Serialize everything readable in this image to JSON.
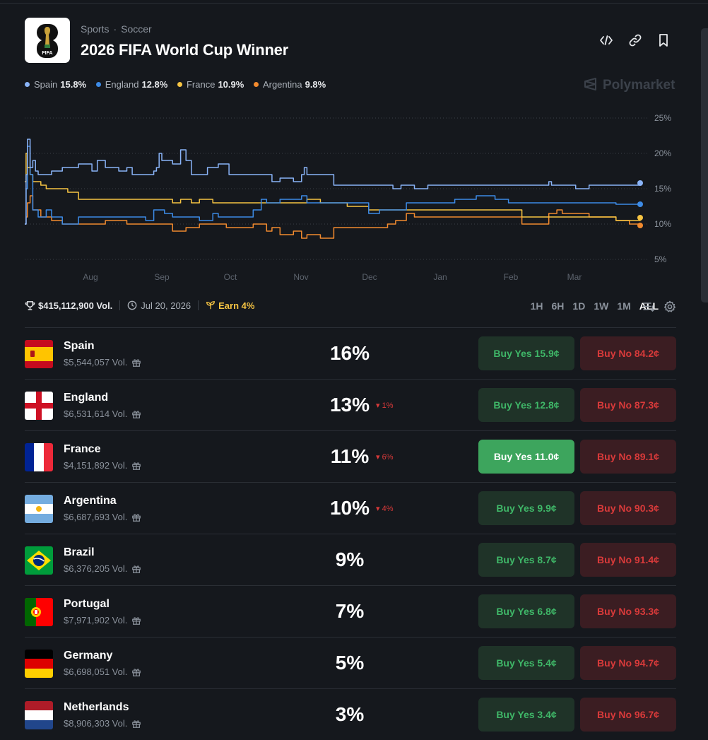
{
  "header": {
    "breadcrumb": [
      "Sports",
      "Soccer"
    ],
    "breadcrumb_sep": "·",
    "title": "2026 FIFA World Cup Winner",
    "logo_text": "FIFA",
    "icons": [
      "embed-icon",
      "link-icon",
      "bookmark-icon"
    ]
  },
  "legend": [
    {
      "name": "Spain",
      "value": "15.8%",
      "color": "#8ab4f8"
    },
    {
      "name": "England",
      "value": "12.8%",
      "color": "#3d8be6"
    },
    {
      "name": "France",
      "value": "10.9%",
      "color": "#f6c443"
    },
    {
      "name": "Argentina",
      "value": "9.8%",
      "color": "#f28a2e"
    }
  ],
  "brand": "Polymarket",
  "chart_data": {
    "type": "line",
    "x_ticks": [
      "Aug",
      "Sep",
      "Oct",
      "Nov",
      "Dec",
      "Jan",
      "Feb",
      "Mar"
    ],
    "y_ticks": [
      "25%",
      "20%",
      "15%",
      "10%",
      "5%"
    ],
    "ylim": [
      5,
      25
    ],
    "series": [
      {
        "name": "Spain",
        "color": "#8ab4f8",
        "points": [
          [
            0,
            10
          ],
          [
            0.5,
            17
          ],
          [
            1,
            22
          ],
          [
            2,
            18
          ],
          [
            3,
            19
          ],
          [
            4,
            17.5
          ],
          [
            5,
            17
          ],
          [
            10,
            17.5
          ],
          [
            14,
            18
          ],
          [
            20,
            18.5
          ],
          [
            25,
            17.5
          ],
          [
            27,
            19
          ],
          [
            30,
            18
          ],
          [
            35,
            17.5
          ],
          [
            38,
            18
          ],
          [
            40,
            17
          ],
          [
            45,
            17
          ],
          [
            48,
            17.5
          ],
          [
            49,
            18
          ],
          [
            50,
            20
          ],
          [
            51,
            19
          ],
          [
            55,
            18.5
          ],
          [
            58,
            20.5
          ],
          [
            60,
            19
          ],
          [
            62,
            17
          ],
          [
            68,
            18
          ],
          [
            72,
            18.5
          ],
          [
            76,
            17
          ],
          [
            80,
            17
          ],
          [
            85,
            17
          ],
          [
            88,
            17
          ],
          [
            92,
            16
          ],
          [
            95,
            16.5
          ],
          [
            100,
            16
          ],
          [
            103,
            17
          ],
          [
            104,
            18
          ],
          [
            105,
            17
          ],
          [
            110,
            17
          ],
          [
            115,
            15.5
          ],
          [
            130,
            15.5
          ],
          [
            137,
            15
          ],
          [
            140,
            15.5
          ],
          [
            145,
            15
          ],
          [
            150,
            15.5
          ],
          [
            160,
            15.5
          ],
          [
            175,
            15.5
          ],
          [
            185,
            15.5
          ],
          [
            190,
            15.5
          ],
          [
            195,
            16
          ],
          [
            196,
            15.5
          ],
          [
            200,
            15.5
          ],
          [
            205,
            15
          ],
          [
            210,
            15.5
          ],
          [
            220,
            15.5
          ],
          [
            229,
            15.8
          ]
        ]
      },
      {
        "name": "England",
        "color": "#3d8be6",
        "points": [
          [
            0,
            10
          ],
          [
            0.5,
            15
          ],
          [
            1,
            21
          ],
          [
            2,
            17
          ],
          [
            3,
            12
          ],
          [
            5,
            11
          ],
          [
            8,
            12
          ],
          [
            10,
            11
          ],
          [
            14,
            10
          ],
          [
            20,
            11
          ],
          [
            25,
            11
          ],
          [
            40,
            11
          ],
          [
            45,
            10.5
          ],
          [
            48,
            12
          ],
          [
            52,
            11.5
          ],
          [
            55,
            11
          ],
          [
            60,
            11
          ],
          [
            65,
            10.5
          ],
          [
            70,
            11.5
          ],
          [
            72,
            11
          ],
          [
            80,
            11
          ],
          [
            85,
            12
          ],
          [
            88,
            13.5
          ],
          [
            90,
            13
          ],
          [
            95,
            13.5
          ],
          [
            100,
            13.5
          ],
          [
            103,
            14
          ],
          [
            105,
            13
          ],
          [
            110,
            13
          ],
          [
            115,
            13
          ],
          [
            120,
            13
          ],
          [
            128,
            11.5
          ],
          [
            132,
            12
          ],
          [
            138,
            12
          ],
          [
            142,
            13
          ],
          [
            148,
            13
          ],
          [
            152,
            13
          ],
          [
            160,
            13.5
          ],
          [
            168,
            14
          ],
          [
            175,
            13.5
          ],
          [
            180,
            13
          ],
          [
            190,
            13
          ],
          [
            195,
            13
          ],
          [
            200,
            13
          ],
          [
            210,
            13
          ],
          [
            220,
            12.8
          ],
          [
            229,
            12.8
          ]
        ]
      },
      {
        "name": "France",
        "color": "#f6c443",
        "points": [
          [
            0,
            16
          ],
          [
            0.5,
            20
          ],
          [
            1,
            18
          ],
          [
            2,
            17
          ],
          [
            3,
            16
          ],
          [
            6,
            15.5
          ],
          [
            8,
            15
          ],
          [
            12,
            15
          ],
          [
            16,
            14.5
          ],
          [
            20,
            13.5
          ],
          [
            25,
            13.5
          ],
          [
            40,
            13.5
          ],
          [
            50,
            13.5
          ],
          [
            55,
            13
          ],
          [
            58,
            13.5
          ],
          [
            62,
            13
          ],
          [
            65,
            13.5
          ],
          [
            70,
            13
          ],
          [
            75,
            13
          ],
          [
            80,
            13
          ],
          [
            85,
            13
          ],
          [
            90,
            13
          ],
          [
            100,
            13
          ],
          [
            105,
            13.5
          ],
          [
            110,
            13
          ],
          [
            115,
            13
          ],
          [
            120,
            12.5
          ],
          [
            128,
            12
          ],
          [
            135,
            12
          ],
          [
            140,
            12
          ],
          [
            150,
            12
          ],
          [
            160,
            12
          ],
          [
            175,
            12
          ],
          [
            185,
            11
          ],
          [
            190,
            11
          ],
          [
            195,
            11
          ],
          [
            200,
            11
          ],
          [
            205,
            11
          ],
          [
            210,
            11
          ],
          [
            215,
            11
          ],
          [
            220,
            10.5
          ],
          [
            229,
            10.9
          ]
        ]
      },
      {
        "name": "Argentina",
        "color": "#f28a2e",
        "points": [
          [
            0,
            10
          ],
          [
            0.5,
            11
          ],
          [
            1,
            13
          ],
          [
            2,
            14
          ],
          [
            3,
            12
          ],
          [
            6,
            11
          ],
          [
            10,
            10.5
          ],
          [
            14,
            10
          ],
          [
            20,
            10
          ],
          [
            25,
            10
          ],
          [
            30,
            10.5
          ],
          [
            38,
            10
          ],
          [
            45,
            10
          ],
          [
            50,
            10
          ],
          [
            55,
            9
          ],
          [
            60,
            9.5
          ],
          [
            65,
            10
          ],
          [
            70,
            10
          ],
          [
            75,
            9.5
          ],
          [
            80,
            9.5
          ],
          [
            85,
            10
          ],
          [
            90,
            9
          ],
          [
            92,
            9.5
          ],
          [
            95,
            8.5
          ],
          [
            100,
            9
          ],
          [
            103,
            8
          ],
          [
            105,
            8.5
          ],
          [
            110,
            8
          ],
          [
            115,
            9.5
          ],
          [
            120,
            9.5
          ],
          [
            125,
            9.5
          ],
          [
            130,
            9.5
          ],
          [
            135,
            10
          ],
          [
            138,
            10.5
          ],
          [
            142,
            11.5
          ],
          [
            145,
            11
          ],
          [
            150,
            11
          ],
          [
            160,
            11
          ],
          [
            170,
            11
          ],
          [
            175,
            11
          ],
          [
            180,
            11
          ],
          [
            185,
            10
          ],
          [
            190,
            10
          ],
          [
            195,
            11.5
          ],
          [
            198,
            12
          ],
          [
            200,
            11.5
          ],
          [
            205,
            11.5
          ],
          [
            210,
            11
          ],
          [
            215,
            11
          ],
          [
            220,
            10.5
          ],
          [
            225,
            10
          ],
          [
            229,
            9.8
          ]
        ]
      }
    ]
  },
  "stats": {
    "volume": "$415,112,900 Vol.",
    "date": "Jul 20, 2026",
    "earn": "Earn 4%"
  },
  "ranges": [
    "1H",
    "6H",
    "1D",
    "1W",
    "1M",
    "ALL"
  ],
  "active_range": "ALL",
  "markets": [
    {
      "name": "Spain",
      "volume": "$5,544,057 Vol.",
      "pct": "16%",
      "change": "",
      "yes": "Buy Yes 15.9¢",
      "no": "Buy No 84.2¢",
      "flag": "spain"
    },
    {
      "name": "England",
      "volume": "$6,531,614 Vol.",
      "pct": "13%",
      "change": "▾ 1%",
      "yes": "Buy Yes 12.8¢",
      "no": "Buy No 87.3¢",
      "flag": "england"
    },
    {
      "name": "France",
      "volume": "$4,151,892 Vol.",
      "pct": "11%",
      "change": "▾ 6%",
      "yes": "Buy Yes 11.0¢",
      "no": "Buy No 89.1¢",
      "flag": "france",
      "highlight": true
    },
    {
      "name": "Argentina",
      "volume": "$6,687,693 Vol.",
      "pct": "10%",
      "change": "▾ 4%",
      "yes": "Buy Yes 9.9¢",
      "no": "Buy No 90.3¢",
      "flag": "argentina"
    },
    {
      "name": "Brazil",
      "volume": "$6,376,205 Vol.",
      "pct": "9%",
      "change": "",
      "yes": "Buy Yes 8.7¢",
      "no": "Buy No 91.4¢",
      "flag": "brazil"
    },
    {
      "name": "Portugal",
      "volume": "$7,971,902 Vol.",
      "pct": "7%",
      "change": "",
      "yes": "Buy Yes 6.8¢",
      "no": "Buy No 93.3¢",
      "flag": "portugal"
    },
    {
      "name": "Germany",
      "volume": "$6,698,051 Vol.",
      "pct": "5%",
      "change": "",
      "yes": "Buy Yes 5.4¢",
      "no": "Buy No 94.7¢",
      "flag": "germany"
    },
    {
      "name": "Netherlands",
      "volume": "$8,906,303 Vol.",
      "pct": "3%",
      "change": "",
      "yes": "Buy Yes 3.4¢",
      "no": "Buy No 96.7¢",
      "flag": "netherlands"
    }
  ]
}
